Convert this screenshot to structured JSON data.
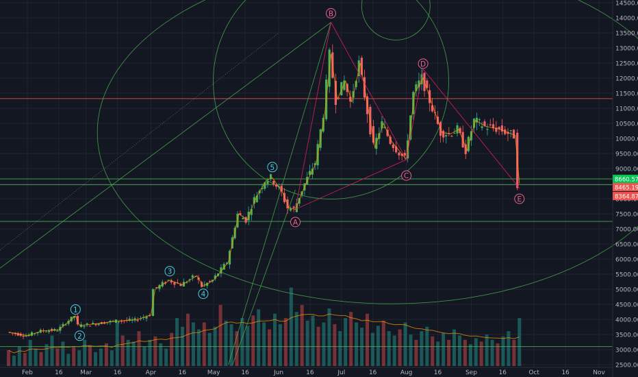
{
  "chart_data": {
    "type": "candlestick",
    "title": "",
    "xlabel": "",
    "ylabel": "",
    "ylim": [
      2500,
      14500
    ],
    "y_ticks": [
      "14500.00",
      "14000.00",
      "13500.00",
      "13000.00",
      "12500.00",
      "12000.00",
      "11500.00",
      "11000.00",
      "10500.00",
      "10000.00",
      "9500.00",
      "9000.00",
      "8500.00",
      "8000.00",
      "7500.00",
      "7000.00",
      "6500.00",
      "6000.00",
      "5500.00",
      "5000.00",
      "4500.00",
      "4000.00",
      "3500.00",
      "3000.00",
      "2500.00"
    ],
    "x_ticks": [
      {
        "label": "Feb",
        "date": "2019-02-01"
      },
      {
        "label": "16",
        "date": "2019-02-16"
      },
      {
        "label": "Mar",
        "date": "2019-03-01"
      },
      {
        "label": "16",
        "date": "2019-03-16"
      },
      {
        "label": "Apr",
        "date": "2019-04-01"
      },
      {
        "label": "16",
        "date": "2019-04-16"
      },
      {
        "label": "May",
        "date": "2019-05-01"
      },
      {
        "label": "16",
        "date": "2019-05-16"
      },
      {
        "label": "Jun",
        "date": "2019-06-01"
      },
      {
        "label": "16",
        "date": "2019-06-16"
      },
      {
        "label": "Jul",
        "date": "2019-07-01"
      },
      {
        "label": "16",
        "date": "2019-07-16"
      },
      {
        "label": "Aug",
        "date": "2019-08-01"
      },
      {
        "label": "16",
        "date": "2019-08-16"
      },
      {
        "label": "Sep",
        "date": "2019-09-01"
      },
      {
        "label": "16",
        "date": "2019-09-16"
      },
      {
        "label": "Oct",
        "date": "2019-10-01"
      },
      {
        "label": "16",
        "date": "2019-10-16"
      },
      {
        "label": "Nov",
        "date": "2019-11-01"
      }
    ],
    "price_path": [
      {
        "date": "2019-01-23",
        "price": 3580
      },
      {
        "date": "2019-02-01",
        "price": 3460
      },
      {
        "date": "2019-02-08",
        "price": 3620
      },
      {
        "date": "2019-02-16",
        "price": 3650
      },
      {
        "date": "2019-02-24",
        "price": 4120
      },
      {
        "date": "2019-02-26",
        "price": 3790
      },
      {
        "date": "2019-03-05",
        "price": 3850
      },
      {
        "date": "2019-03-16",
        "price": 3950
      },
      {
        "date": "2019-03-25",
        "price": 3980
      },
      {
        "date": "2019-04-01",
        "price": 4150
      },
      {
        "date": "2019-04-03",
        "price": 5000
      },
      {
        "date": "2019-04-10",
        "price": 5300
      },
      {
        "date": "2019-04-16",
        "price": 5150
      },
      {
        "date": "2019-04-23",
        "price": 5450
      },
      {
        "date": "2019-04-26",
        "price": 5100
      },
      {
        "date": "2019-05-01",
        "price": 5300
      },
      {
        "date": "2019-05-08",
        "price": 5900
      },
      {
        "date": "2019-05-13",
        "price": 7500
      },
      {
        "date": "2019-05-17",
        "price": 7300
      },
      {
        "date": "2019-05-21",
        "price": 8000
      },
      {
        "date": "2019-05-26",
        "price": 8600
      },
      {
        "date": "2019-05-29",
        "price": 8700
      },
      {
        "date": "2019-06-03",
        "price": 8200
      },
      {
        "date": "2019-06-06",
        "price": 7700
      },
      {
        "date": "2019-06-09",
        "price": 7650
      },
      {
        "date": "2019-06-14",
        "price": 8500
      },
      {
        "date": "2019-06-19",
        "price": 9200
      },
      {
        "date": "2019-06-23",
        "price": 10800
      },
      {
        "date": "2019-06-26",
        "price": 12800
      },
      {
        "date": "2019-06-29",
        "price": 11300
      },
      {
        "date": "2019-07-03",
        "price": 11900
      },
      {
        "date": "2019-07-06",
        "price": 11200
      },
      {
        "date": "2019-07-10",
        "price": 12500
      },
      {
        "date": "2019-07-14",
        "price": 10900
      },
      {
        "date": "2019-07-17",
        "price": 9700
      },
      {
        "date": "2019-07-21",
        "price": 10500
      },
      {
        "date": "2019-07-25",
        "price": 9900
      },
      {
        "date": "2019-08-01",
        "price": 9300
      },
      {
        "date": "2019-08-05",
        "price": 11500
      },
      {
        "date": "2019-08-09",
        "price": 12000
      },
      {
        "date": "2019-08-14",
        "price": 11000
      },
      {
        "date": "2019-08-18",
        "price": 10200
      },
      {
        "date": "2019-08-22",
        "price": 10150
      },
      {
        "date": "2019-08-26",
        "price": 10300
      },
      {
        "date": "2019-08-30",
        "price": 9600
      },
      {
        "date": "2019-09-03",
        "price": 10600
      },
      {
        "date": "2019-09-08",
        "price": 10400
      },
      {
        "date": "2019-09-15",
        "price": 10300
      },
      {
        "date": "2019-09-22",
        "price": 10100
      },
      {
        "date": "2019-09-24",
        "price": 8500
      }
    ],
    "last_prices": [
      {
        "label": "8660.57",
        "color": "#00c853"
      },
      {
        "label": "8465.19",
        "color": "#ef5350"
      },
      {
        "label": "8364.87",
        "color": "#ef5350"
      }
    ],
    "horizontal_levels": [
      {
        "price": 8660,
        "color": "#4caf50"
      },
      {
        "price": 8465,
        "color": "#4caf50"
      },
      {
        "price": 7250,
        "color": "#4caf50"
      },
      {
        "price": 11320,
        "color": "#ef5350"
      },
      {
        "price": 3100,
        "color": "#4caf50"
      }
    ],
    "wave_labels": [
      {
        "text": "1",
        "date": "2019-02-24",
        "price": 4330,
        "color": "#4dd0e1"
      },
      {
        "text": "2",
        "date": "2019-02-26",
        "price": 3460,
        "color": "#4dd0e1"
      },
      {
        "text": "3",
        "date": "2019-04-10",
        "price": 5600,
        "color": "#4dd0e1"
      },
      {
        "text": "4",
        "date": "2019-04-26",
        "price": 4850,
        "color": "#4dd0e1"
      },
      {
        "text": "5",
        "date": "2019-05-29",
        "price": 9050,
        "color": "#4dd0e1"
      },
      {
        "text": "A",
        "date": "2019-06-09",
        "price": 7230,
        "color": "#f06292"
      },
      {
        "text": "B",
        "date": "2019-06-26",
        "price": 14150,
        "color": "#f06292"
      },
      {
        "text": "C",
        "date": "2019-08-01",
        "price": 8770,
        "color": "#f06292"
      },
      {
        "text": "D",
        "date": "2019-08-09",
        "price": 12480,
        "color": "#f06292"
      },
      {
        "text": "E",
        "date": "2019-09-24",
        "price": 8000,
        "color": "#f06292"
      }
    ],
    "pattern_lines": [
      [
        "2019-06-09",
        "2019-06-26",
        7650,
        13850
      ],
      [
        "2019-06-26",
        "2019-08-01",
        13850,
        9300
      ],
      [
        "2019-08-01",
        "2019-08-09",
        9300,
        12300
      ],
      [
        "2019-08-09",
        "2019-09-24",
        12300,
        8350
      ],
      [
        "2019-06-09",
        "2019-08-01",
        7650,
        9300
      ]
    ],
    "volume_heights": [
      0.18,
      0.12,
      0.22,
      0.15,
      0.3,
      0.2,
      0.16,
      0.25,
      0.35,
      0.2,
      0.28,
      0.14,
      0.22,
      0.18,
      0.3,
      0.24,
      0.16,
      0.2,
      0.26,
      0.18,
      0.5,
      0.35,
      0.3,
      0.28,
      0.4,
      0.22,
      0.3,
      0.34,
      0.26,
      0.2,
      0.38,
      0.55,
      0.45,
      0.6,
      0.5,
      0.42,
      0.5,
      0.38,
      0.45,
      0.7,
      0.52,
      0.48,
      0.4,
      0.55,
      0.46,
      0.58,
      0.65,
      0.5,
      0.42,
      0.6,
      0.48,
      0.55,
      0.9,
      0.62,
      0.7,
      0.52,
      0.58,
      0.45,
      0.5,
      0.66,
      0.48,
      0.4,
      0.55,
      0.62,
      0.5,
      0.44,
      0.6,
      0.38,
      0.46,
      0.52,
      0.4,
      0.35,
      0.42,
      0.5,
      0.36,
      0.3,
      0.4,
      0.45,
      0.34,
      0.28,
      0.38,
      0.3,
      0.42,
      0.35,
      0.3,
      0.25,
      0.32,
      0.28,
      0.36,
      0.3,
      0.26,
      0.34,
      0.4,
      0.3,
      0.55
    ]
  }
}
